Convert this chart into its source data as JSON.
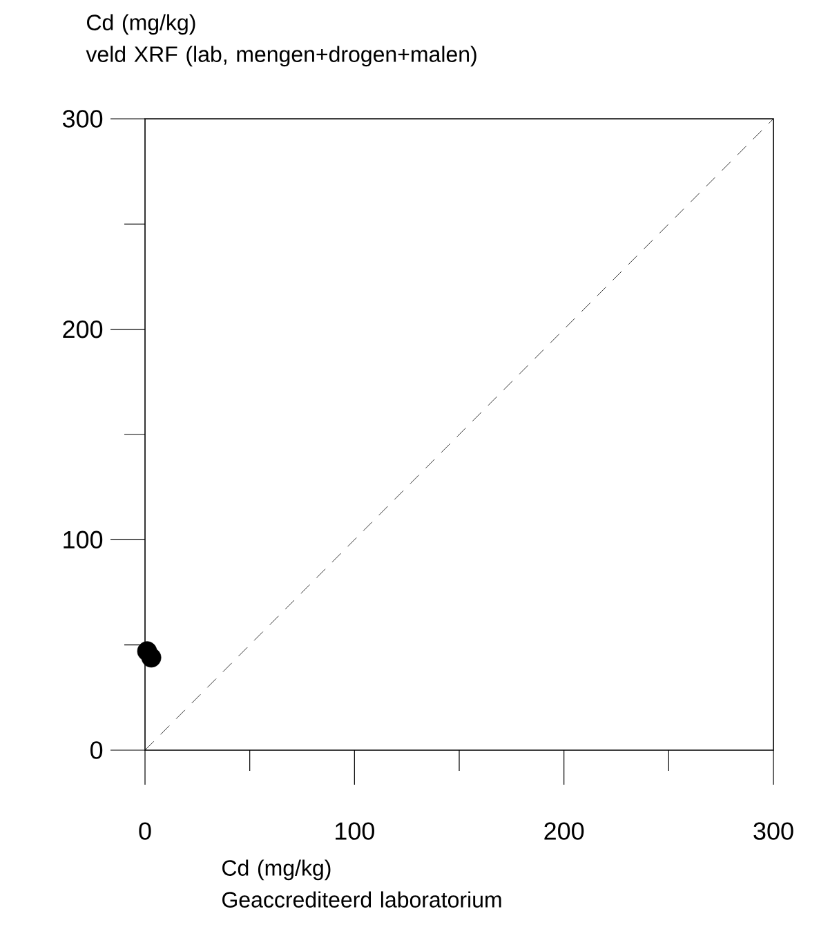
{
  "chart_data": {
    "type": "scatter",
    "xlabel": "Cd (mg/kg)\nGeaccrediteerd laboratorium",
    "ylabel": "Cd (mg/kg)\nveld XRF (lab, mengen+drogen+malen)",
    "xlim": [
      0,
      300
    ],
    "ylim": [
      0,
      300
    ],
    "xticks": [
      0,
      {
        "value": 50,
        "label": null
      },
      100,
      {
        "value": 150,
        "label": null
      },
      200,
      {
        "value": 250,
        "label": null
      },
      300
    ],
    "yticks": [
      0,
      {
        "value": 50,
        "label": null
      },
      100,
      {
        "value": 150,
        "label": null
      },
      200,
      {
        "value": 250,
        "label": null
      },
      300
    ],
    "series": [
      {
        "x": [
          1,
          3
        ],
        "values": [
          47,
          44
        ],
        "color": "#000000",
        "marker": "circle"
      },
      {
        "type": "line",
        "x": [
          0,
          300
        ],
        "values": [
          0,
          300
        ],
        "color": "#000000",
        "line_style": "dashed",
        "marker": "none"
      }
    ]
  }
}
